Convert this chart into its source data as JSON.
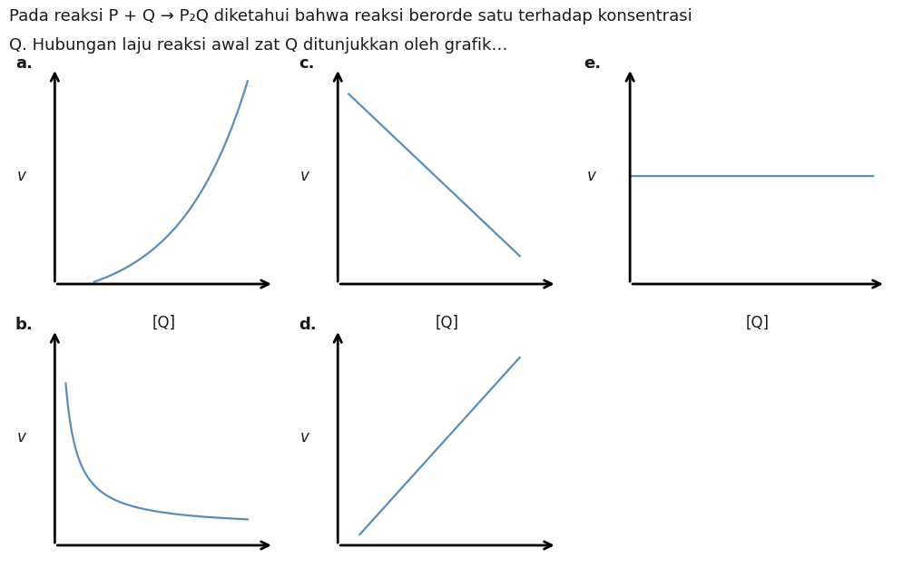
{
  "curve_color": "#5b8db8",
  "curve_linewidth": 1.6,
  "axis_color": "#000000",
  "label_fontsize": 12,
  "sublabel_fontsize": 13,
  "ylabel_fontsize": 12,
  "text_color": "#1a1a1a",
  "bg_color": "#ffffff",
  "title_line1": "Pada reaksi P + Q → P₂Q diketahui bahwa reaksi berorde satu terhadap konsentrasi",
  "title_line2": "Q. Hubungan laju reaksi awal zat Q ditunjukkan oleh grafik…",
  "title_fontsize": 13,
  "panels_a_xlabel": "[Q]",
  "panels_xlabel": "[Q]",
  "panels_ylabel": "v"
}
